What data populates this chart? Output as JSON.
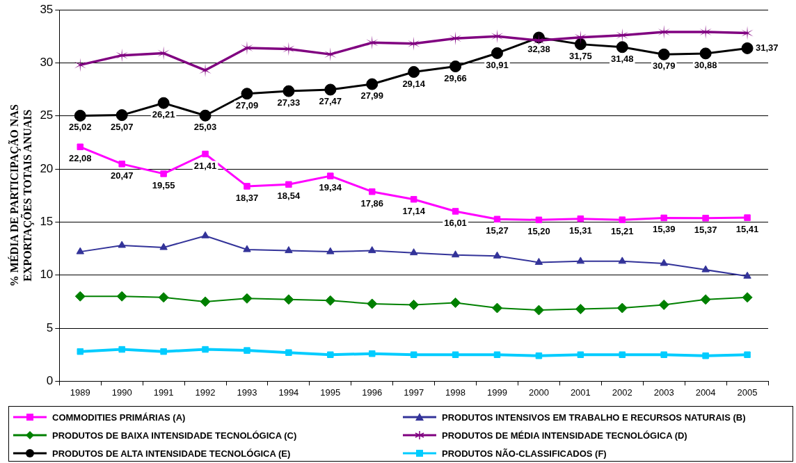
{
  "chart_data": {
    "type": "line",
    "ylabel": "% MÉDIA DE PARTICIPAÇÃO NAS\nEXPORTAÇÕES TOTAIS ANUAIS",
    "categories": [
      "1989",
      "1990",
      "1991",
      "1992",
      "1993",
      "1994",
      "1995",
      "1996",
      "1997",
      "1998",
      "1999",
      "2000",
      "2001",
      "2002",
      "2003",
      "2004",
      "2005"
    ],
    "ylim": [
      0,
      35
    ],
    "yticks": [
      0,
      5,
      10,
      15,
      20,
      25,
      30,
      35
    ],
    "grid": "y",
    "legend": "bottom",
    "series": [
      {
        "name": "COMMODITIES PRIMÁRIAS (A)",
        "color": "#ff00ff",
        "marker": "square",
        "values": [
          22.08,
          20.47,
          19.55,
          21.41,
          18.37,
          18.54,
          19.34,
          17.86,
          17.14,
          16.01,
          15.27,
          15.2,
          15.31,
          15.21,
          15.39,
          15.37,
          15.41
        ],
        "value_labels": [
          "22,08",
          "20,47",
          "19,55",
          "21,41",
          "18,37",
          "18,54",
          "19,34",
          "17,86",
          "17,14",
          "16,01",
          "15,27",
          "15,20",
          "15,31",
          "15,21",
          "15,39",
          "15,37",
          "15,41"
        ]
      },
      {
        "name": "PRODUTOS INTENSIVOS EM TRABALHO E RECURSOS NATURAIS (B)",
        "color": "#333399",
        "marker": "triangle",
        "values": [
          12.2,
          12.8,
          12.6,
          13.7,
          12.4,
          12.3,
          12.2,
          12.3,
          12.1,
          11.9,
          11.8,
          11.2,
          11.3,
          11.3,
          11.1,
          10.5,
          9.9
        ]
      },
      {
        "name": "PRODUTOS DE BAIXA INTENSIDADE TECNOLÓGICA (C)",
        "color": "#008000",
        "marker": "diamond",
        "values": [
          8.0,
          8.0,
          7.9,
          7.5,
          7.8,
          7.7,
          7.6,
          7.3,
          7.2,
          7.4,
          6.9,
          6.7,
          6.8,
          6.9,
          7.2,
          7.7,
          7.9
        ]
      },
      {
        "name": "PRODUTOS DE MÉDIA INTENSIDADE TECNOLÓGICA (D)",
        "color": "#800080",
        "marker": "cross",
        "values": [
          29.8,
          30.7,
          30.9,
          29.3,
          31.4,
          31.3,
          30.8,
          31.9,
          31.8,
          32.3,
          32.5,
          32.1,
          32.4,
          32.6,
          32.9,
          32.9,
          32.8
        ]
      },
      {
        "name": "PRODUTOS DE ALTA INTENSIDADE TECNOLÓGICA (E)",
        "color": "#000000",
        "marker": "circle",
        "values": [
          25.02,
          25.07,
          26.21,
          25.03,
          27.09,
          27.33,
          27.47,
          27.99,
          29.14,
          29.66,
          30.91,
          32.38,
          31.75,
          31.48,
          30.79,
          30.88,
          31.37
        ],
        "value_labels": [
          "25,02",
          "25,07",
          "26,21",
          "25,03",
          "27,09",
          "27,33",
          "27,47",
          "27,99",
          "29,14",
          "29,66",
          "30,91",
          "32,38",
          "31,75",
          "31,48",
          "30,79",
          "30,88",
          "31,37"
        ]
      },
      {
        "name": "PRODUTOS NÃO-CLASSIFICADOS (F)",
        "color": "#00ccff",
        "marker": "square",
        "values": [
          2.8,
          3.0,
          2.8,
          3.0,
          2.9,
          2.7,
          2.5,
          2.6,
          2.5,
          2.5,
          2.5,
          2.4,
          2.5,
          2.5,
          2.5,
          2.4,
          2.5
        ]
      }
    ]
  }
}
